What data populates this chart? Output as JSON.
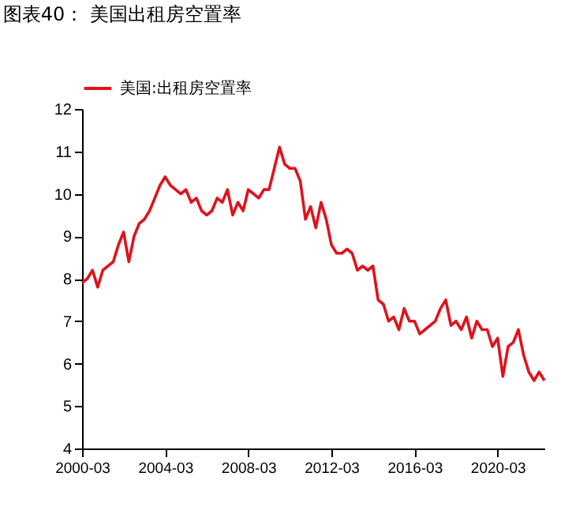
{
  "chart_data": {
    "type": "line",
    "title": "图表40： 美国出租房空置率",
    "x": [
      "2000-03",
      "2000-06",
      "2000-09",
      "2000-12",
      "2001-03",
      "2001-06",
      "2001-09",
      "2001-12",
      "2002-03",
      "2002-06",
      "2002-09",
      "2002-12",
      "2003-03",
      "2003-06",
      "2003-09",
      "2003-12",
      "2004-03",
      "2004-06",
      "2004-09",
      "2004-12",
      "2005-03",
      "2005-06",
      "2005-09",
      "2005-12",
      "2006-03",
      "2006-06",
      "2006-09",
      "2006-12",
      "2007-03",
      "2007-06",
      "2007-09",
      "2007-12",
      "2008-03",
      "2008-06",
      "2008-09",
      "2008-12",
      "2009-03",
      "2009-06",
      "2009-09",
      "2009-12",
      "2010-03",
      "2010-06",
      "2010-09",
      "2010-12",
      "2011-03",
      "2011-06",
      "2011-09",
      "2011-12",
      "2012-03",
      "2012-06",
      "2012-09",
      "2012-12",
      "2013-03",
      "2013-06",
      "2013-09",
      "2013-12",
      "2014-03",
      "2014-06",
      "2014-09",
      "2014-12",
      "2015-03",
      "2015-06",
      "2015-09",
      "2015-12",
      "2016-03",
      "2016-06",
      "2016-09",
      "2016-12",
      "2017-03",
      "2017-06",
      "2017-09",
      "2017-12",
      "2018-03",
      "2018-06",
      "2018-09",
      "2018-12",
      "2019-03",
      "2019-06",
      "2019-09",
      "2019-12",
      "2020-03",
      "2020-06",
      "2020-09",
      "2020-12",
      "2021-03",
      "2021-06",
      "2021-09",
      "2021-12",
      "2022-03",
      "2022-06"
    ],
    "series": [
      {
        "name": "美国:出租房空置率",
        "color": "#e0121c",
        "values": [
          7.9,
          8.0,
          8.2,
          7.8,
          8.2,
          8.3,
          8.4,
          8.8,
          9.1,
          8.4,
          9.0,
          9.3,
          9.4,
          9.6,
          9.9,
          10.2,
          10.4,
          10.2,
          10.1,
          10.0,
          10.1,
          9.8,
          9.9,
          9.6,
          9.5,
          9.6,
          9.9,
          9.8,
          10.1,
          9.5,
          9.8,
          9.6,
          10.1,
          10.0,
          9.9,
          10.1,
          10.1,
          10.6,
          11.1,
          10.7,
          10.6,
          10.6,
          10.3,
          9.4,
          9.7,
          9.2,
          9.8,
          9.4,
          8.8,
          8.6,
          8.6,
          8.7,
          8.6,
          8.2,
          8.3,
          8.2,
          8.3,
          7.5,
          7.4,
          7.0,
          7.1,
          6.8,
          7.3,
          7.0,
          7.0,
          6.7,
          6.8,
          6.9,
          7.0,
          7.3,
          7.5,
          6.9,
          7.0,
          6.8,
          7.1,
          6.6,
          7.0,
          6.8,
          6.8,
          6.4,
          6.6,
          5.7,
          6.4,
          6.5,
          6.8,
          6.2,
          5.8,
          5.6,
          5.8,
          5.6
        ]
      }
    ],
    "xlim": [
      "2000-03",
      "2022-06"
    ],
    "xticks": [
      "2000-03",
      "2004-03",
      "2008-03",
      "2012-03",
      "2016-03",
      "2020-03"
    ],
    "ylim": [
      4,
      12
    ],
    "yticks": [
      4,
      5,
      6,
      7,
      8,
      9,
      10,
      11,
      12
    ],
    "grid": false,
    "legend": "top",
    "marker": "none",
    "line_style": "solid"
  }
}
